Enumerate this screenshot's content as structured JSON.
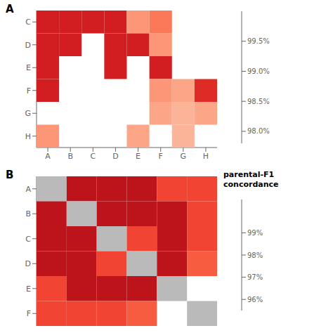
{
  "chart_data": [
    {
      "type": "heatmap",
      "title": "A",
      "x": [
        "A",
        "B",
        "C",
        "D",
        "E",
        "F",
        "G",
        "H"
      ],
      "y": [
        "C",
        "D",
        "E",
        "F",
        "G",
        "H"
      ],
      "values": [
        [
          99.4,
          99.4,
          99.4,
          99.4,
          98.6,
          98.8,
          null,
          null
        ],
        [
          99.4,
          99.4,
          null,
          99.4,
          99.4,
          98.6,
          null,
          null
        ],
        [
          99.4,
          null,
          null,
          99.4,
          null,
          99.4,
          null,
          null
        ],
        [
          99.4,
          null,
          null,
          null,
          null,
          98.6,
          98.5,
          99.3
        ],
        [
          null,
          null,
          null,
          null,
          null,
          98.5,
          98.4,
          98.5
        ],
        [
          98.6,
          null,
          null,
          null,
          98.5,
          null,
          98.4,
          null
        ]
      ],
      "color": "Reds",
      "colorbar": {
        "range": [
          97.8,
          100.0
        ],
        "ticks": [
          {
            "value": 98.0,
            "label": "98.0%"
          },
          {
            "value": 98.5,
            "label": "98.5%"
          },
          {
            "value": 99.0,
            "label": "99.0%"
          },
          {
            "value": 99.5,
            "label": "99.5%"
          }
        ]
      }
    },
    {
      "type": "heatmap",
      "title": "B",
      "subtitle": "parental-F1\nconcordance",
      "y": [
        "A",
        "B",
        "C",
        "D",
        "E",
        "F"
      ],
      "tick_labels": "y",
      "values": [
        [
          null,
          99.5,
          99.5,
          99.5,
          98.5,
          98.5
        ],
        [
          99.5,
          null,
          99.5,
          99.5,
          99.5,
          98.5
        ],
        [
          99.5,
          99.5,
          null,
          98.5,
          99.5,
          98.5
        ],
        [
          99.5,
          99.5,
          98.5,
          null,
          99.5,
          98.2
        ],
        [
          98.5,
          99.5,
          99.5,
          99.5,
          null,
          null
        ],
        [
          98.5,
          98.5,
          98.5,
          98.2,
          null,
          null
        ]
      ],
      "color": "Reds",
      "diagonal_color": "#bbbaba",
      "colorbar": {
        "range": [
          95.5,
          100.5
        ],
        "ticks": [
          {
            "value": 96.0,
            "label": "96%"
          },
          {
            "value": 97.0,
            "label": "97%"
          },
          {
            "value": 98.0,
            "label": "98%"
          },
          {
            "value": 99.0,
            "label": "99%"
          }
        ]
      }
    }
  ]
}
